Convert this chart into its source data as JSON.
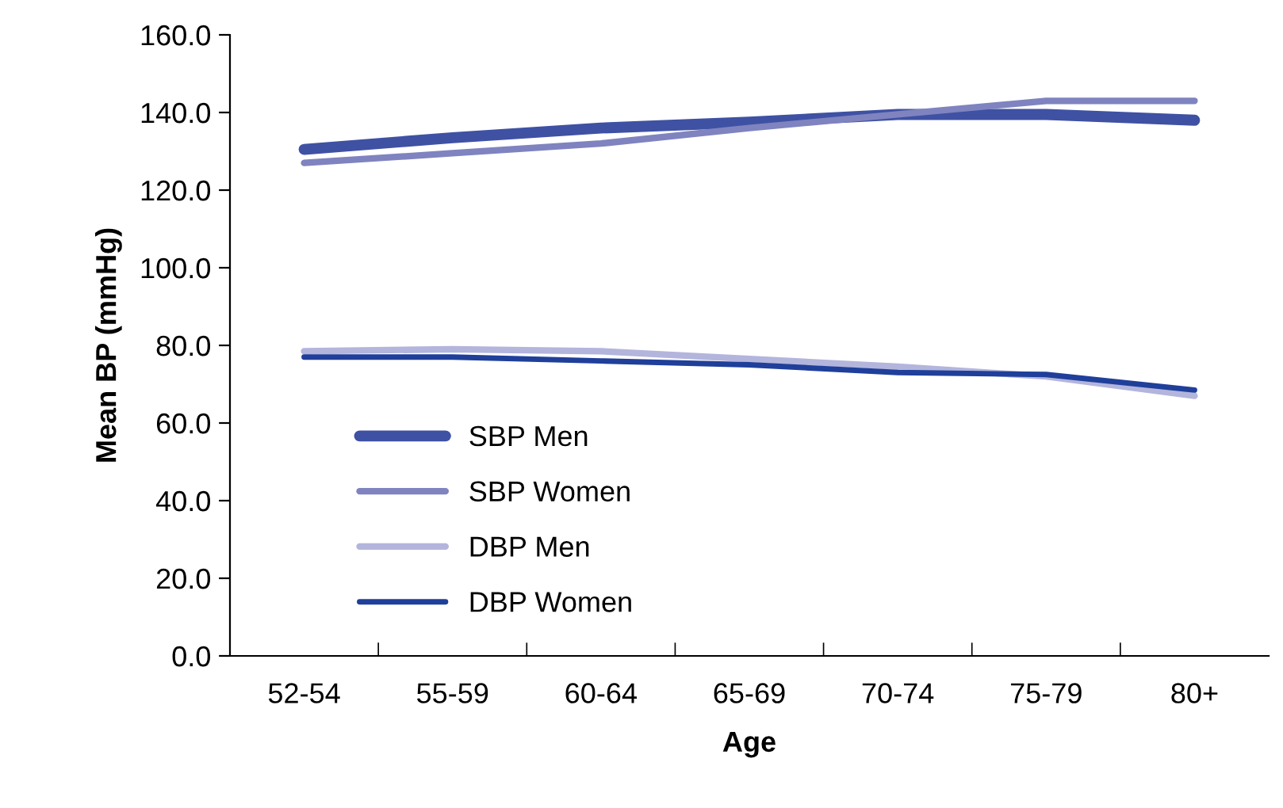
{
  "chart_data": {
    "type": "line",
    "xlabel": "Age",
    "ylabel": "Mean BP (mmHg)",
    "categories": [
      "52-54",
      "55-59",
      "60-64",
      "65-69",
      "70-74",
      "75-79",
      "80+"
    ],
    "series": [
      {
        "name": "SBP Men",
        "color": "#3f51a3",
        "values": [
          130.5,
          133.5,
          136.0,
          137.5,
          139.5,
          139.5,
          138.0
        ]
      },
      {
        "name": "SBP Women",
        "color": "#7f83bf",
        "values": [
          127.0,
          129.5,
          132.0,
          136.0,
          139.5,
          143.0,
          143.0
        ]
      },
      {
        "name": "DBP Men",
        "color": "#b3b5dc",
        "values": [
          78.5,
          79.0,
          78.5,
          76.5,
          74.5,
          72.0,
          67.0
        ]
      },
      {
        "name": "DBP Women",
        "color": "#1f3f9a",
        "values": [
          77.0,
          77.0,
          76.0,
          75.0,
          73.0,
          72.5,
          68.5
        ]
      }
    ],
    "ylim": [
      0,
      160
    ],
    "yticks": [
      {
        "value": 0,
        "label": "0.0"
      },
      {
        "value": 20,
        "label": "20.0"
      },
      {
        "value": 40,
        "label": "40.0"
      },
      {
        "value": 60,
        "label": "60.0"
      },
      {
        "value": 80,
        "label": "80.0"
      },
      {
        "value": 100,
        "label": "100.0"
      },
      {
        "value": 120,
        "label": "120.0"
      },
      {
        "value": 140,
        "label": "140.0"
      },
      {
        "value": 160,
        "label": "160.0"
      }
    ],
    "grid": false,
    "legend": "bottom left",
    "marker": "none",
    "line_style": "solid"
  }
}
